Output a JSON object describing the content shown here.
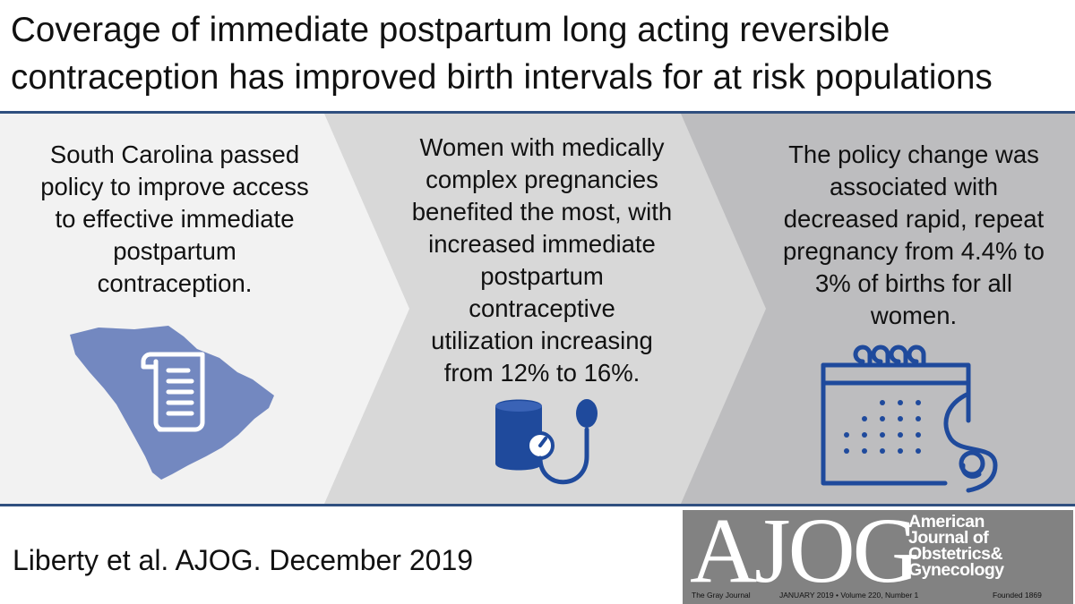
{
  "title": {
    "line1": "Coverage of immediate postpartum long acting reversible",
    "line2": "contraception has improved birth intervals for at risk populations"
  },
  "panels": [
    {
      "lines": [
        "South Carolina passed",
        "policy to improve access",
        "to effective immediate",
        "postpartum",
        "contraception."
      ],
      "icon": "south-carolina-map-with-document-scroll",
      "background": "#f2f2f2"
    },
    {
      "lines": [
        "Women with medically",
        "complex pregnancies",
        "benefited the most, with",
        "increased immediate",
        "postpartum",
        "contraceptive",
        "utilization increasing",
        "from 12% to 16%."
      ],
      "icon": "blood-pressure-cuff",
      "background": "#d8d8d8"
    },
    {
      "lines": [
        "The policy change was",
        "associated with",
        "decreased rapid, repeat",
        "pregnancy from 4.4% to",
        "3% of births for all",
        "women."
      ],
      "icon": "calendar-pregnant-belly",
      "background": "#bdbdbf"
    }
  ],
  "citation": "Liberty et al.  AJOG. December 2019",
  "journal_cover": {
    "acronym": "AJOG",
    "name_lines": [
      "American",
      "Journal of",
      "Obstetrics&",
      "Gynecology"
    ],
    "tagline": "The Gray Journal",
    "issue": "JANUARY 2019 • Volume 220, Number 1",
    "founded": "Founded 1869"
  },
  "colors": {
    "accent": "#2f4f7f",
    "icon_blue": "#1f4a9c",
    "map_blue": "#7388c0"
  }
}
